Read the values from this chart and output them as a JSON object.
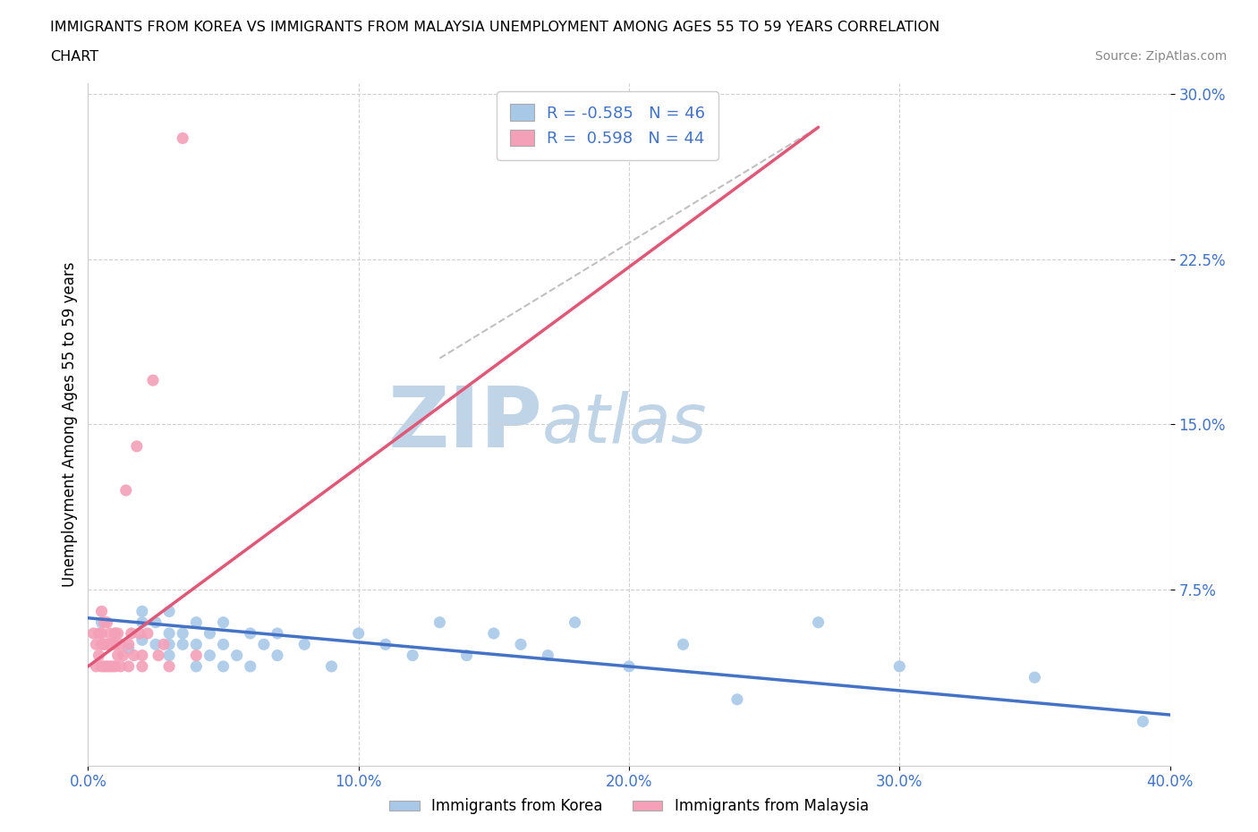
{
  "title_line1": "IMMIGRANTS FROM KOREA VS IMMIGRANTS FROM MALAYSIA UNEMPLOYMENT AMONG AGES 55 TO 59 YEARS CORRELATION",
  "title_line2": "CHART",
  "source_text": "Source: ZipAtlas.com",
  "ylabel": "Unemployment Among Ages 55 to 59 years",
  "xlim": [
    0.0,
    0.4
  ],
  "ylim": [
    -0.005,
    0.305
  ],
  "xticks": [
    0.0,
    0.1,
    0.2,
    0.3,
    0.4
  ],
  "xtick_labels": [
    "0.0%",
    "10.0%",
    "20.0%",
    "30.0%",
    "40.0%"
  ],
  "ytick_positions": [
    0.075,
    0.15,
    0.225,
    0.3
  ],
  "ytick_labels": [
    "7.5%",
    "15.0%",
    "22.5%",
    "30.0%"
  ],
  "korea_color": "#a8c8e8",
  "malaysia_color": "#f4a0b8",
  "korea_line_color": "#4472c4",
  "malaysia_line_color": "#e05878",
  "legend_R_korea": "-0.585",
  "legend_N_korea": "46",
  "legend_R_malaysia": "0.598",
  "legend_N_malaysia": "44",
  "watermark_ZIP_color": "#c0d4e8",
  "watermark_atlas_color": "#c0d4e8",
  "korea_x": [
    0.005,
    0.01,
    0.015,
    0.02,
    0.02,
    0.02,
    0.025,
    0.025,
    0.03,
    0.03,
    0.03,
    0.03,
    0.035,
    0.035,
    0.04,
    0.04,
    0.04,
    0.045,
    0.045,
    0.05,
    0.05,
    0.05,
    0.055,
    0.06,
    0.06,
    0.065,
    0.07,
    0.07,
    0.08,
    0.09,
    0.1,
    0.11,
    0.12,
    0.13,
    0.14,
    0.15,
    0.16,
    0.17,
    0.18,
    0.2,
    0.22,
    0.24,
    0.27,
    0.3,
    0.35,
    0.39
  ],
  "korea_y": [
    0.06,
    0.055,
    0.048,
    0.052,
    0.06,
    0.065,
    0.05,
    0.06,
    0.045,
    0.05,
    0.055,
    0.065,
    0.05,
    0.055,
    0.04,
    0.05,
    0.06,
    0.045,
    0.055,
    0.04,
    0.05,
    0.06,
    0.045,
    0.04,
    0.055,
    0.05,
    0.045,
    0.055,
    0.05,
    0.04,
    0.055,
    0.05,
    0.045,
    0.06,
    0.045,
    0.055,
    0.05,
    0.045,
    0.06,
    0.04,
    0.05,
    0.025,
    0.06,
    0.04,
    0.035,
    0.015
  ],
  "malaysia_x": [
    0.002,
    0.003,
    0.003,
    0.004,
    0.004,
    0.005,
    0.005,
    0.005,
    0.005,
    0.006,
    0.006,
    0.006,
    0.007,
    0.007,
    0.007,
    0.008,
    0.008,
    0.008,
    0.009,
    0.009,
    0.01,
    0.01,
    0.01,
    0.011,
    0.011,
    0.012,
    0.012,
    0.013,
    0.014,
    0.015,
    0.015,
    0.016,
    0.017,
    0.018,
    0.019,
    0.02,
    0.02,
    0.022,
    0.024,
    0.026,
    0.028,
    0.03,
    0.035,
    0.04
  ],
  "malaysia_y": [
    0.055,
    0.04,
    0.05,
    0.045,
    0.055,
    0.04,
    0.05,
    0.055,
    0.065,
    0.04,
    0.05,
    0.06,
    0.04,
    0.05,
    0.06,
    0.04,
    0.05,
    0.055,
    0.04,
    0.05,
    0.04,
    0.05,
    0.055,
    0.045,
    0.055,
    0.04,
    0.05,
    0.045,
    0.12,
    0.04,
    0.05,
    0.055,
    0.045,
    0.14,
    0.055,
    0.04,
    0.045,
    0.055,
    0.17,
    0.045,
    0.05,
    0.04,
    0.28,
    0.045
  ],
  "malaysia_line_x0": 0.0,
  "malaysia_line_x1": 0.27,
  "malaysia_line_y0": 0.04,
  "malaysia_line_y1": 0.285,
  "korea_trendline_x0": 0.0,
  "korea_trendline_x1": 0.4,
  "korea_trendline_y0": 0.062,
  "korea_trendline_y1": 0.018
}
